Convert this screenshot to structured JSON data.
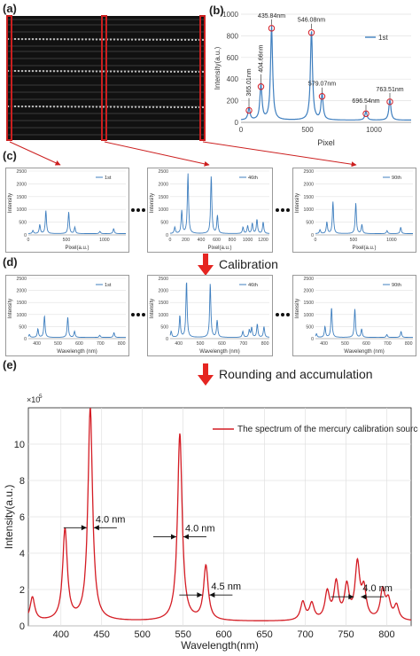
{
  "labels": {
    "a": "(a)",
    "b": "(b)",
    "c": "(c)",
    "d": "(d)",
    "e": "(e)"
  },
  "steps": {
    "calibration": "Calibration",
    "rounding": "Rounding and accumulation"
  },
  "colors": {
    "frame_red": "#cc1f1f",
    "blue": "#3f7fbf",
    "red_line": "#d41c24",
    "grid": "#d9d9d9"
  },
  "chart_data": [
    {
      "id": "b",
      "type": "line",
      "series": [
        {
          "name": "1st"
        }
      ],
      "xlabel": "Pixel",
      "ylabel": "Intensity(a.u.)",
      "xlim": [
        0,
        1280
      ],
      "ylim": [
        0,
        1000
      ],
      "xticks": [
        0,
        500,
        1000
      ],
      "yticks": [
        0,
        200,
        400,
        600,
        800,
        1000
      ],
      "peaks": [
        {
          "x": 60,
          "y": 110,
          "label": "365.01nm"
        },
        {
          "x": 150,
          "y": 330,
          "label": "404.66nm"
        },
        {
          "x": 230,
          "y": 870,
          "label": "435.84nm"
        },
        {
          "x": 530,
          "y": 830,
          "label": "546.08nm"
        },
        {
          "x": 610,
          "y": 240,
          "label": "579.07nm"
        },
        {
          "x": 940,
          "y": 80,
          "label": "696.54nm"
        },
        {
          "x": 1120,
          "y": 190,
          "label": "763.51nm"
        }
      ]
    },
    {
      "id": "c1",
      "type": "line",
      "series": [
        {
          "name": "1st"
        }
      ],
      "xlabel": "Pixel(a.u.)",
      "ylabel": "Intensity",
      "xlim": [
        0,
        1280
      ],
      "ylim": [
        0,
        2500
      ],
      "xticks": [
        0,
        500,
        1000
      ],
      "yticks": [
        0,
        500,
        1000,
        1500,
        2000,
        2500
      ],
      "peaks": [
        [
          60,
          120
        ],
        [
          150,
          350
        ],
        [
          230,
          900
        ],
        [
          530,
          850
        ],
        [
          610,
          250
        ],
        [
          940,
          90
        ],
        [
          1120,
          200
        ]
      ]
    },
    {
      "id": "c2",
      "type": "line",
      "series": [
        {
          "name": "46th"
        }
      ],
      "xlabel": "Pixel(a.u.)",
      "ylabel": "Intensity",
      "xlim": [
        0,
        1280
      ],
      "ylim": [
        0,
        2500
      ],
      "xticks": [
        0,
        200,
        400,
        600,
        800,
        1000,
        1200
      ],
      "yticks": [
        0,
        500,
        1000,
        1500,
        2000,
        2500
      ],
      "peaks": [
        [
          60,
          250
        ],
        [
          150,
          900
        ],
        [
          230,
          2350
        ],
        [
          530,
          2250
        ],
        [
          610,
          700
        ],
        [
          940,
          250
        ],
        [
          1000,
          300
        ],
        [
          1060,
          400
        ],
        [
          1120,
          550
        ],
        [
          1200,
          450
        ]
      ]
    },
    {
      "id": "c3",
      "type": "line",
      "series": [
        {
          "name": "90th"
        }
      ],
      "xlabel": "Pixel(a.u.)",
      "ylabel": "Intensity",
      "xlim": [
        0,
        1280
      ],
      "ylim": [
        0,
        2500
      ],
      "xticks": [
        0,
        500,
        1000
      ],
      "yticks": [
        0,
        500,
        1000,
        1500,
        2000,
        2500
      ],
      "peaks": [
        [
          60,
          150
        ],
        [
          150,
          450
        ],
        [
          230,
          1250
        ],
        [
          530,
          1200
        ],
        [
          610,
          350
        ],
        [
          940,
          120
        ],
        [
          1120,
          250
        ]
      ]
    },
    {
      "id": "d1",
      "type": "line",
      "series": [
        {
          "name": "1st"
        }
      ],
      "xlabel": "Wavelength (nm)",
      "ylabel": "Intensity",
      "xlim": [
        360,
        820
      ],
      "ylim": [
        0,
        2500
      ],
      "xticks": [
        400,
        500,
        600,
        700,
        800
      ],
      "yticks": [
        0,
        500,
        1000,
        1500,
        2000,
        2500
      ],
      "peaks": [
        [
          365,
          120
        ],
        [
          405,
          350
        ],
        [
          436,
          900
        ],
        [
          546,
          850
        ],
        [
          578,
          250
        ],
        [
          697,
          90
        ],
        [
          764,
          200
        ]
      ]
    },
    {
      "id": "d2",
      "type": "line",
      "series": [
        {
          "name": "46th"
        }
      ],
      "xlabel": "Wavelength (nm)",
      "ylabel": "Intensity",
      "xlim": [
        360,
        820
      ],
      "ylim": [
        0,
        2500
      ],
      "xticks": [
        400,
        500,
        600,
        700,
        800
      ],
      "yticks": [
        0,
        500,
        1000,
        1500,
        2000,
        2500
      ],
      "peaks": [
        [
          365,
          250
        ],
        [
          405,
          900
        ],
        [
          436,
          2350
        ],
        [
          546,
          2250
        ],
        [
          578,
          700
        ],
        [
          697,
          250
        ],
        [
          727,
          300
        ],
        [
          738,
          400
        ],
        [
          764,
          550
        ],
        [
          795,
          450
        ]
      ]
    },
    {
      "id": "d3",
      "type": "line",
      "series": [
        {
          "name": "90th"
        }
      ],
      "xlabel": "Wavelength (nm)",
      "ylabel": "Intensity",
      "xlim": [
        360,
        820
      ],
      "ylim": [
        0,
        2500
      ],
      "xticks": [
        400,
        500,
        600,
        700,
        800
      ],
      "yticks": [
        0,
        500,
        1000,
        1500,
        2000,
        2500
      ],
      "peaks": [
        [
          365,
          150
        ],
        [
          405,
          450
        ],
        [
          436,
          1250
        ],
        [
          546,
          1200
        ],
        [
          578,
          350
        ],
        [
          697,
          120
        ],
        [
          764,
          250
        ]
      ]
    },
    {
      "id": "e",
      "type": "line",
      "series": [
        {
          "name": "The spectrum of the mercury calibration source"
        }
      ],
      "xlabel": "Wavelength(nm)",
      "ylabel": "Intensity(a.u.)",
      "scale_note": "×10",
      "scale_exp": "5",
      "xlim": [
        360,
        830
      ],
      "ylim": [
        0,
        12
      ],
      "xticks": [
        400,
        450,
        500,
        550,
        600,
        650,
        700,
        750,
        800
      ],
      "yticks": [
        0,
        2,
        4,
        6,
        8,
        10
      ],
      "peaks": [
        [
          365,
          1.3
        ],
        [
          405,
          5.0
        ],
        [
          436,
          11.7
        ],
        [
          546,
          10.3
        ],
        [
          578,
          3.0
        ],
        [
          697,
          1.0
        ],
        [
          708,
          0.9
        ],
        [
          727,
          1.5
        ],
        [
          738,
          2.0
        ],
        [
          751,
          1.8
        ],
        [
          764,
          3.0
        ],
        [
          772,
          1.6
        ],
        [
          795,
          1.6
        ],
        [
          802,
          1.0
        ],
        [
          812,
          0.8
        ]
      ],
      "fwhm": [
        {
          "text": "4.0 nm",
          "x": 436,
          "y": 5.4
        },
        {
          "text": "4.0 nm",
          "x": 546,
          "y": 4.9
        },
        {
          "text": "4.5 nm",
          "x": 578,
          "y": 1.7
        },
        {
          "text": "4.0 nm",
          "x": 764,
          "y": 1.6
        }
      ]
    }
  ]
}
